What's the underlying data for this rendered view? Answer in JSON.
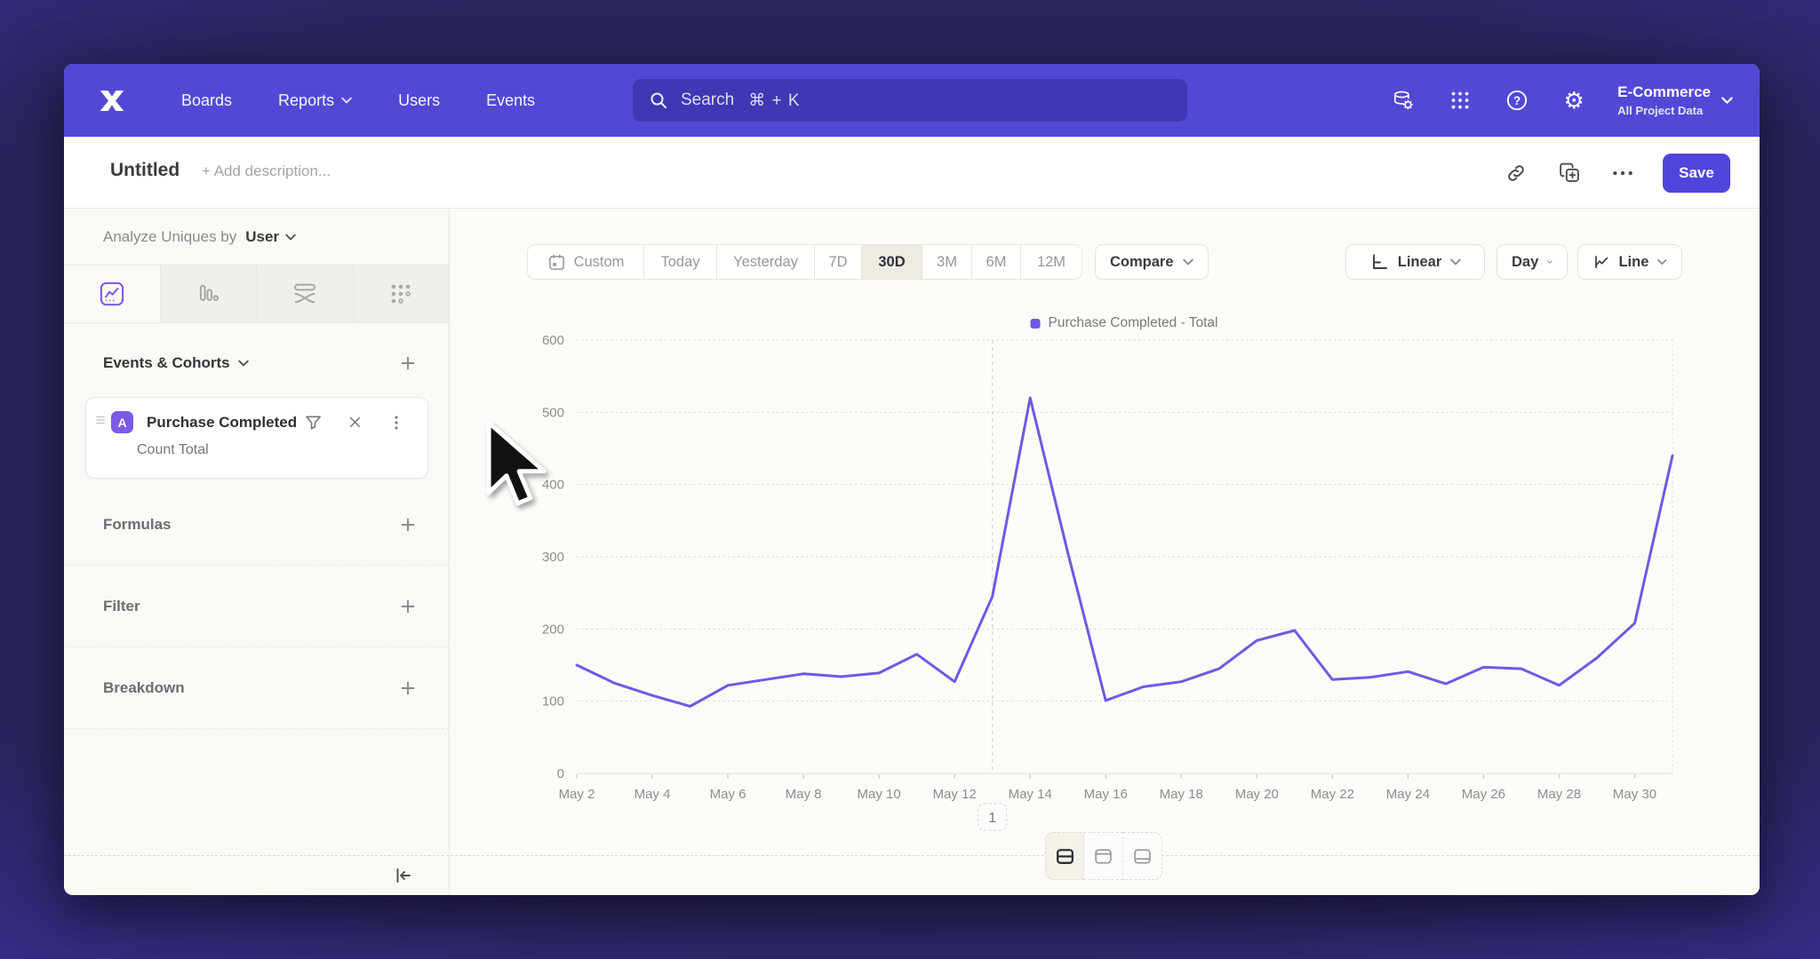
{
  "nav": {
    "items": [
      {
        "label": "Boards",
        "dropdown": false
      },
      {
        "label": "Reports",
        "dropdown": true
      },
      {
        "label": "Users",
        "dropdown": false
      },
      {
        "label": "Events",
        "dropdown": false
      }
    ],
    "search_placeholder": "Search",
    "search_shortcut": "⌘ + K",
    "project_name": "E-Commerce",
    "project_scope": "All Project Data"
  },
  "header": {
    "title": "Untitled",
    "description_placeholder": "+ Add description...",
    "save_label": "Save"
  },
  "sidebar": {
    "analyze_label": "Analyze Uniques by",
    "analyze_value": "User",
    "events_section_label": "Events & Cohorts",
    "event_card": {
      "badge": "A",
      "name": "Purchase Completed",
      "metric": "Count Total"
    },
    "sections": [
      "Formulas",
      "Filter",
      "Breakdown"
    ]
  },
  "toolbar": {
    "date_ranges": [
      "Custom",
      "Today",
      "Yesterday",
      "7D",
      "30D",
      "3M",
      "6M",
      "12M"
    ],
    "active_range": "30D",
    "compare_label": "Compare",
    "scale_label": "Linear",
    "interval_label": "Day",
    "chart_type_label": "Line"
  },
  "legend_label": "Purchase Completed - Total",
  "chart_data": {
    "type": "line",
    "title": "",
    "xlabel": "",
    "ylabel": "",
    "ylim": [
      0,
      600
    ],
    "yticks": [
      0,
      100,
      200,
      300,
      400,
      500,
      600
    ],
    "grid": "horizontal-dotted",
    "legend_position": "top-center",
    "x_label_every": 2,
    "dates": [
      "May 2",
      "May 3",
      "May 4",
      "May 5",
      "May 6",
      "May 7",
      "May 8",
      "May 9",
      "May 10",
      "May 11",
      "May 12",
      "May 13",
      "May 14",
      "May 15",
      "May 16",
      "May 17",
      "May 18",
      "May 19",
      "May 20",
      "May 21",
      "May 22",
      "May 23",
      "May 24",
      "May 25",
      "May 26",
      "May 27",
      "May 28",
      "May 29",
      "May 30",
      "May 31"
    ],
    "series": [
      {
        "name": "Purchase Completed - Total",
        "color": "#6c5ae4",
        "values": [
          150,
          125,
          108,
          93,
          122,
          130,
          138,
          134,
          139,
          165,
          127,
          245,
          520,
          305,
          101,
          120,
          127,
          145,
          184,
          198,
          130,
          133,
          141,
          124,
          147,
          145,
          122,
          160,
          208,
          440
        ]
      }
    ],
    "annotation": {
      "label": "1",
      "date": "May 13",
      "index": 11
    }
  },
  "footer": {
    "view_toggles": [
      "split-rows-view",
      "top-panel-view",
      "bottom-panel-view"
    ],
    "active_toggle": 0
  },
  "icons": {
    "gear_glyph": "⚙",
    "help_glyph": "?",
    "names": [
      "logo-x-icon",
      "search-icon",
      "data-management-icon",
      "apps-grid-icon",
      "help-icon",
      "gear-icon",
      "chevron-down-icon",
      "link-icon",
      "duplicate-icon",
      "ellipsis-icon",
      "insights-tab-icon",
      "bars-tab-icon",
      "flows-tab-icon",
      "retention-tab-icon",
      "drag-handle-icon",
      "filter-funnel-icon",
      "close-icon",
      "kebab-icon",
      "plus-icon",
      "calendar-icon",
      "linear-scale-icon",
      "line-chart-icon",
      "collapse-sidebar-icon",
      "layout-toggle-icons",
      "cursor-arrow"
    ]
  },
  "colors": {
    "nav": "#5348d6",
    "accent": "#4f44dc",
    "line": "#6c5ae4",
    "active_icon": "#7b5ae8"
  }
}
